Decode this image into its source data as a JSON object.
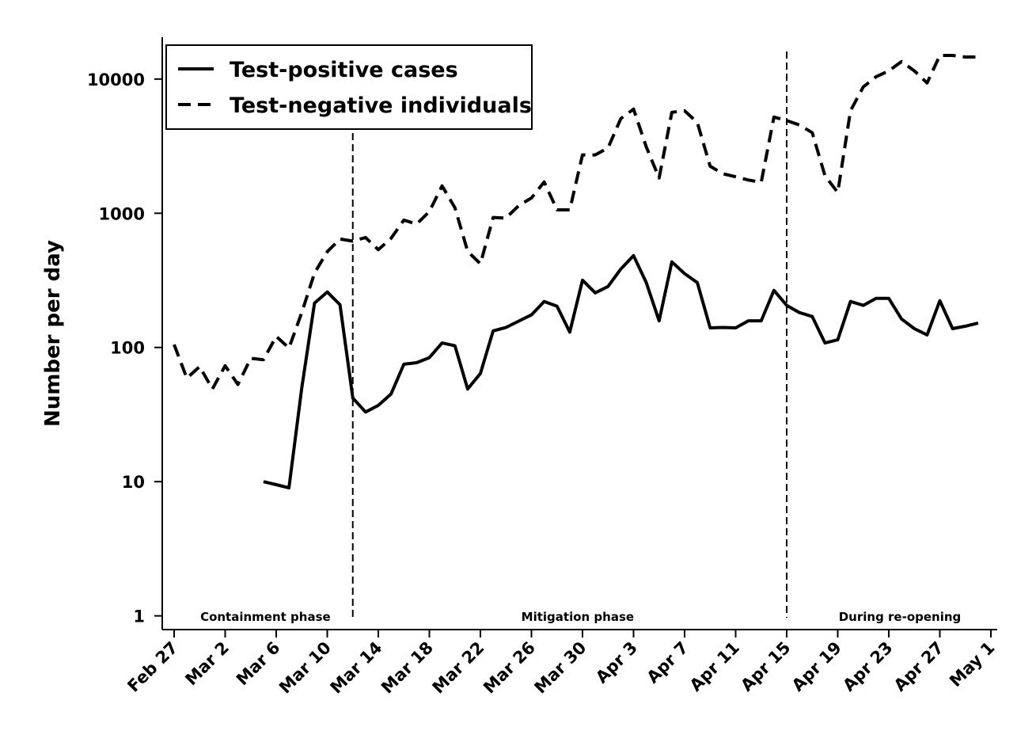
{
  "chart_data": {
    "type": "line",
    "y_label": "Number per day",
    "log_scale_y": true,
    "ylim": [
      0.79,
      20500
    ],
    "yticks": [
      1,
      10,
      100,
      1000,
      10000
    ],
    "categories": [
      "Feb 27",
      null,
      null,
      null,
      "Mar 2",
      null,
      null,
      null,
      "Mar 6",
      null,
      null,
      null,
      "Mar 10",
      null,
      null,
      null,
      "Mar 14",
      null,
      null,
      null,
      "Mar 18",
      null,
      null,
      null,
      "Mar 22",
      null,
      null,
      null,
      "Mar 26",
      null,
      null,
      null,
      "Mar 30",
      null,
      null,
      null,
      "Apr 3",
      null,
      null,
      null,
      "Apr 7",
      null,
      null,
      null,
      "Apr 11",
      null,
      null,
      null,
      "Apr 15",
      null,
      null,
      null,
      "Apr 19",
      null,
      null,
      null,
      "Apr 23",
      null,
      null,
      null,
      "Apr 27",
      null,
      null,
      null,
      "May 1"
    ],
    "series": [
      {
        "name": "Test-positive cases",
        "color": "#000000",
        "dash": "solid",
        "values": [
          null,
          null,
          null,
          null,
          null,
          null,
          null,
          10,
          9.5,
          9,
          50,
          214,
          259,
          208,
          42,
          33,
          37,
          45,
          75,
          77,
          84,
          108,
          103,
          49,
          64,
          133,
          141,
          157,
          175,
          220,
          203,
          130,
          317,
          255,
          285,
          384,
          483,
          304,
          158,
          434,
          355,
          304,
          140,
          141,
          140,
          158,
          158,
          266,
          206,
          182,
          170,
          108,
          114,
          220,
          206,
          232,
          232,
          163,
          138,
          124,
          223,
          138,
          144,
          152,
          null
        ]
      },
      {
        "name": "Test-negative individuals",
        "color": "#000000",
        "dash": "dashed",
        "values": [
          105,
          59,
          72,
          49,
          73,
          53,
          83,
          81,
          121,
          99,
          182,
          359,
          517,
          643,
          620,
          660,
          535,
          650,
          890,
          830,
          1030,
          1600,
          1100,
          520,
          420,
          930,
          920,
          1140,
          1300,
          1710,
          1060,
          1060,
          2720,
          2720,
          3070,
          5070,
          5970,
          3120,
          1830,
          5650,
          5800,
          4740,
          2240,
          1970,
          1870,
          1770,
          1700,
          5210,
          4900,
          4550,
          3980,
          1900,
          1430,
          5800,
          8750,
          10400,
          11500,
          13500,
          11500,
          9350,
          15000,
          15000,
          14600,
          14600,
          null
        ]
      }
    ],
    "phase_boundaries": [
      14,
      48
    ],
    "phases": [
      "Containment phase",
      "Mitigation phase",
      "During re-opening"
    ],
    "legend": "top-left"
  }
}
